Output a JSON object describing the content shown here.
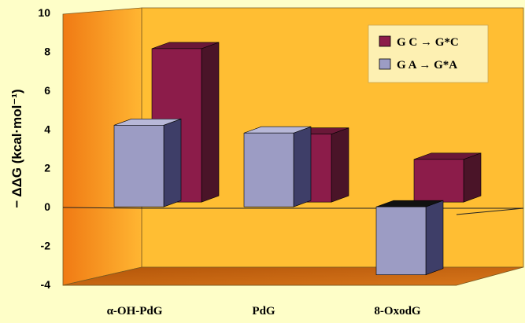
{
  "chart_data": {
    "type": "bar",
    "style": "3d-clustered",
    "categories": [
      "α-OH-PdG",
      "PdG",
      "8-OxodG"
    ],
    "series": [
      {
        "name": "G C  → G*C",
        "values": [
          7.9,
          3.5,
          2.2
        ],
        "color": "#8c1c4a",
        "side_color": "#4a1428",
        "top_color": "#6a1838"
      },
      {
        "name": "G A  → G*A",
        "values": [
          4.2,
          3.8,
          -3.5
        ],
        "color": "#9c9cc4",
        "side_color": "#3e3e68",
        "top_color": "#b8b8d8"
      }
    ],
    "ylim": [
      -4,
      10
    ],
    "yticks": [
      -4,
      -2,
      0,
      2,
      4,
      6,
      8,
      10
    ],
    "ylabel": "− ΔΔG  (kcal·mol⁻¹)",
    "xlabel": "",
    "title": "",
    "grid": false,
    "legend_placement": "top-right",
    "colors": {
      "background": "#fefec8",
      "back_wall": "#ffbe33",
      "left_wall_dark": "#f07a14",
      "left_wall_light": "#ffb632",
      "floor": "#c8620c"
    }
  }
}
